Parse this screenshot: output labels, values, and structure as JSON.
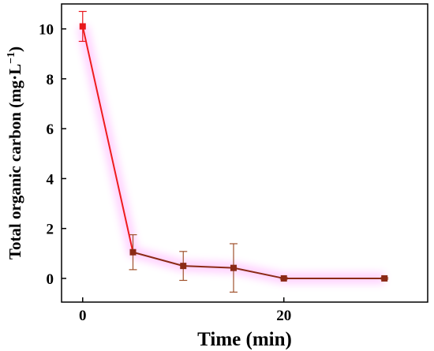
{
  "chart_data": {
    "type": "line",
    "x": [
      0,
      5,
      10,
      15,
      20,
      30
    ],
    "series": [
      {
        "values": [
          10.1,
          1.05,
          0.5,
          0.42,
          0.0,
          0.0
        ],
        "errors": [
          0.6,
          0.7,
          0.58,
          0.97,
          0.03,
          0.03
        ]
      }
    ],
    "xlabel": "Time (min)",
    "ylabel": {
      "main": "Total organic carbon (mg·L",
      "exp": "−1",
      "close": ")"
    },
    "xlim": [
      -2.1,
      34.3
    ],
    "ylim": [
      -0.95,
      11.0
    ],
    "xticks": [
      0,
      20
    ],
    "yticks": [
      0,
      2,
      4,
      6,
      8,
      10
    ],
    "grid": false,
    "legend": "none",
    "colors": {
      "first_segment": "#ee1c1c",
      "line": "#8b2a16",
      "first_marker": "#e8161b",
      "marker": "#8b2a16",
      "error_bar": "#a0522d",
      "glow": "#ff33ff"
    }
  }
}
